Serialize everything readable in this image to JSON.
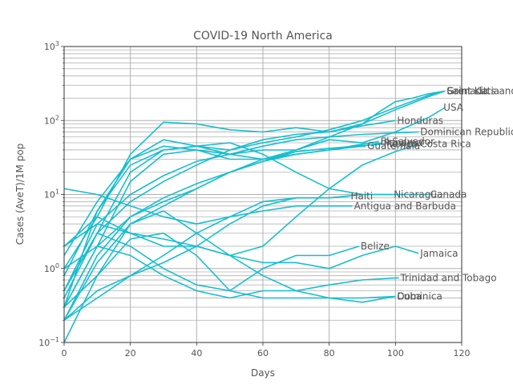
{
  "chart_data": {
    "type": "line",
    "title": "COVID-19  North America",
    "xlabel": "Days",
    "ylabel": "Cases (AveT)/1M pop",
    "xlim": [
      0,
      120
    ],
    "ylim": [
      0.1,
      1000
    ],
    "yscale": "log",
    "xticks": [
      0,
      20,
      40,
      60,
      80,
      100,
      120
    ],
    "yticks": [
      {
        "value": 0.1,
        "base": "10",
        "exp": "−1"
      },
      {
        "value": 1,
        "base": "10",
        "exp": "0"
      },
      {
        "value": 10,
        "base": "10",
        "exp": "1"
      },
      {
        "value": 100,
        "base": "10",
        "exp": "2"
      },
      {
        "value": 1000,
        "base": "10",
        "exp": "3"
      }
    ],
    "grid": true,
    "line_color": "#17becf",
    "series": [
      {
        "name": "USA",
        "label_at": [
          114,
          150
        ],
        "x": [
          0,
          10,
          20,
          30,
          40,
          50,
          60,
          70,
          80,
          90,
          100,
          110,
          115
        ],
        "y": [
          0.3,
          6,
          30,
          55,
          45,
          35,
          40,
          40,
          55,
          50,
          70,
          110,
          150
        ]
      },
      {
        "name": "Saint Lucia",
        "label_at": [
          115,
          250
        ],
        "x": [
          0,
          10,
          20,
          30,
          40,
          50,
          60,
          70,
          80,
          90,
          95,
          100,
          105,
          110,
          115
        ],
        "y": [
          1,
          5,
          35,
          95,
          90,
          75,
          70,
          80,
          70,
          90,
          130,
          180,
          200,
          230,
          250
        ]
      },
      {
        "name": "Saint Kitts and Nevis",
        "label_at": [
          115,
          250
        ],
        "x": [
          0,
          10,
          20,
          30,
          40,
          50,
          60,
          70,
          80,
          90,
          100,
          110,
          115
        ],
        "y": [
          0.5,
          3,
          20,
          40,
          45,
          40,
          50,
          60,
          75,
          100,
          150,
          220,
          250
        ]
      },
      {
        "name": "Grenada",
        "label_at": [
          115,
          250
        ],
        "x": [
          0,
          10,
          20,
          30,
          40,
          50,
          60,
          70,
          80,
          90,
          100,
          110,
          115
        ],
        "y": [
          0.3,
          2,
          15,
          35,
          40,
          30,
          30,
          40,
          60,
          90,
          140,
          210,
          250
        ]
      },
      {
        "name": "Honduras",
        "label_at": [
          100,
          100
        ],
        "x": [
          0,
          10,
          20,
          30,
          40,
          50,
          60,
          70,
          80,
          90,
          100
        ],
        "y": [
          0.4,
          3,
          8,
          15,
          25,
          40,
          55,
          65,
          70,
          85,
          100
        ]
      },
      {
        "name": "Dominican Republic",
        "label_at": [
          107,
          70
        ],
        "x": [
          0,
          10,
          20,
          30,
          40,
          50,
          60,
          70,
          80,
          90,
          100,
          107
        ],
        "y": [
          0.5,
          4,
          10,
          18,
          28,
          35,
          45,
          55,
          60,
          65,
          68,
          70
        ]
      },
      {
        "name": "El Salvador",
        "label_at": [
          95,
          52
        ],
        "x": [
          0,
          10,
          20,
          30,
          40,
          50,
          60,
          70,
          80,
          90,
          95
        ],
        "y": [
          0.2,
          1.5,
          5,
          8,
          12,
          20,
          28,
          35,
          40,
          48,
          52
        ]
      },
      {
        "name": "Panama",
        "label_at": [
          96,
          50
        ],
        "x": [
          0,
          10,
          20,
          30,
          40,
          50,
          60,
          70,
          80,
          90,
          96
        ],
        "y": [
          1.5,
          8,
          30,
          45,
          40,
          35,
          30,
          35,
          40,
          45,
          50
        ]
      },
      {
        "name": "Guatemala",
        "label_at": [
          91,
          45
        ],
        "x": [
          0,
          10,
          20,
          30,
          40,
          50,
          60,
          70,
          80,
          91
        ],
        "y": [
          0.2,
          1.2,
          4,
          7,
          12,
          20,
          30,
          38,
          42,
          45
        ]
      },
      {
        "name": "Mexico",
        "label_at": [
          96,
          48
        ],
        "x": [
          0,
          10,
          20,
          30,
          40,
          50,
          60,
          70,
          80,
          90,
          96
        ],
        "y": [
          0.3,
          2,
          5,
          9,
          14,
          20,
          28,
          38,
          42,
          46,
          48
        ]
      },
      {
        "name": "Costa Rica",
        "label_at": [
          107,
          48
        ],
        "x": [
          0,
          10,
          20,
          30,
          40,
          50,
          60,
          70,
          80,
          90,
          100,
          107
        ],
        "y": [
          2,
          5,
          3,
          2,
          2,
          1.5,
          2,
          5,
          12,
          25,
          38,
          48
        ]
      },
      {
        "name": "Canada",
        "label_at": [
          110,
          10
        ],
        "x": [
          0,
          10,
          20,
          30,
          40,
          50,
          60,
          70,
          80,
          90,
          100,
          110
        ],
        "y": [
          0.8,
          6,
          25,
          40,
          45,
          50,
          35,
          20,
          12,
          10,
          10,
          10
        ]
      },
      {
        "name": "Nicaragua",
        "label_at": [
          99,
          10
        ],
        "x": [
          0,
          10,
          20,
          30,
          40,
          50,
          60,
          70,
          80,
          90,
          99
        ],
        "y": [
          0.2,
          0.5,
          0.8,
          1.2,
          2,
          4,
          7,
          9,
          9,
          10,
          10
        ]
      },
      {
        "name": "Haiti",
        "label_at": [
          86,
          9.5
        ],
        "x": [
          0,
          10,
          20,
          30,
          40,
          50,
          60,
          70,
          80,
          86
        ],
        "y": [
          0.2,
          0.4,
          0.8,
          1.5,
          3,
          5,
          8,
          9,
          9,
          9.5
        ]
      },
      {
        "name": "Antigua and Barbuda",
        "label_at": [
          87,
          7
        ],
        "x": [
          0,
          10,
          20,
          30,
          40,
          50,
          60,
          70,
          80,
          87
        ],
        "y": [
          12,
          10,
          7,
          5,
          4,
          5,
          6,
          7,
          7,
          7
        ]
      },
      {
        "name": "Belize",
        "label_at": [
          89,
          2
        ],
        "x": [
          0,
          10,
          20,
          30,
          40,
          50,
          60,
          70,
          80,
          89
        ],
        "y": [
          0.3,
          0.8,
          2.5,
          3,
          1.5,
          0.5,
          1,
          1.5,
          1.5,
          2
        ]
      },
      {
        "name": "Jamaica",
        "label_at": [
          107,
          1.6
        ],
        "x": [
          0,
          10,
          20,
          30,
          40,
          50,
          60,
          70,
          80,
          90,
          100,
          107
        ],
        "y": [
          2,
          4,
          3,
          2.5,
          2,
          1.5,
          1.2,
          1.2,
          1,
          1.5,
          2,
          1.6
        ]
      },
      {
        "name": "Trinidad and Tobago",
        "label_at": [
          101,
          0.75
        ],
        "x": [
          0,
          10,
          20,
          30,
          40,
          50,
          60,
          70,
          80,
          90,
          101
        ],
        "y": [
          1,
          2,
          1.5,
          0.8,
          0.5,
          0.4,
          0.5,
          0.5,
          0.6,
          0.7,
          0.75
        ]
      },
      {
        "name": "Dominica",
        "label_at": [
          100,
          0.42
        ],
        "x": [
          0,
          10,
          20,
          30,
          40,
          50,
          60,
          70,
          80,
          90,
          100
        ],
        "y": [
          0.5,
          3,
          2,
          1,
          0.6,
          0.5,
          0.4,
          0.4,
          0.4,
          0.4,
          0.42
        ]
      },
      {
        "name": "Cuba",
        "label_at": [
          100,
          0.42
        ],
        "x": [
          0,
          10,
          20,
          30,
          40,
          50,
          60,
          70,
          80,
          90,
          100
        ],
        "y": [
          0.1,
          0.8,
          4,
          6,
          3,
          1.5,
          0.8,
          0.5,
          0.4,
          0.35,
          0.42
        ]
      }
    ]
  }
}
